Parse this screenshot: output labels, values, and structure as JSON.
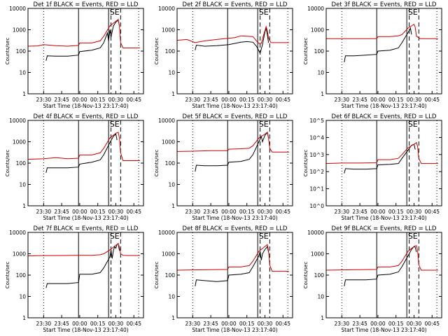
{
  "chart_data": [
    {
      "type": "line",
      "title": "Det 1f  BLACK = Events, RED = LLD",
      "ylabel": "Counts/sec",
      "xlabel": "Start Time (18-Nov-13 23:17:40)",
      "x_ticklabels": [
        "23:30",
        "23:45",
        "00:00",
        "00:15",
        "00:30",
        "00:45"
      ],
      "y_ticklabels": [
        "1",
        "10",
        "100",
        "1000",
        "10000"
      ],
      "ylim": [
        1,
        10000
      ],
      "y_scale": "log",
      "markers": [
        "S",
        "E"
      ],
      "series": [
        {
          "name": "Events",
          "color": "#000000",
          "x": [
            "23:32",
            "23:33",
            "23:40",
            "23:50",
            "23:59",
            "00:00",
            "00:10",
            "00:17",
            "00:20",
            "00:23",
            "00:24",
            "00:25",
            "00:26",
            "00:28",
            "00:30",
            "00:31",
            "00:32",
            "00:33"
          ],
          "y": [
            35,
            60,
            58,
            58,
            65,
            95,
            110,
            140,
            250,
            700,
            300,
            1000,
            450,
            1500,
            2300,
            2500,
            3000,
            1500
          ]
        },
        {
          "name": "LLD",
          "color": "#cc0000",
          "x": [
            "23:17",
            "23:25",
            "23:30",
            "23:40",
            "23:50",
            "23:59",
            "00:00",
            "00:10",
            "00:17",
            "00:20",
            "00:25",
            "00:30",
            "00:32",
            "00:33",
            "00:34",
            "00:36",
            "00:40",
            "00:50"
          ],
          "y": [
            170,
            175,
            200,
            180,
            170,
            185,
            240,
            240,
            300,
            500,
            1500,
            2500,
            3000,
            1500,
            250,
            140,
            140,
            140
          ]
        }
      ]
    },
    {
      "type": "line",
      "title": "Det 2f  BLACK = Events, RED = LLD",
      "ylabel": "Counts/sec",
      "xlabel": "Start Time (18-Nov-13 23:17:40)",
      "x_ticklabels": [
        "23:30",
        "23:45",
        "00:00",
        "00:15",
        "00:30",
        "00:45"
      ],
      "y_ticklabels": [
        "1",
        "10",
        "100",
        "1000",
        "10000"
      ],
      "ylim": [
        1,
        10000
      ],
      "y_scale": "log",
      "markers": [
        "S",
        "E"
      ],
      "series": [
        {
          "name": "Events",
          "color": "#000000",
          "x": [
            "23:32",
            "23:33",
            "23:40",
            "23:50",
            "00:00",
            "00:10",
            "00:15",
            "00:20",
            "00:23",
            "00:26",
            "00:28",
            "00:30",
            "00:31",
            "00:32",
            "00:33"
          ],
          "y": [
            110,
            190,
            170,
            180,
            200,
            260,
            280,
            260,
            170,
            80,
            200,
            800,
            1200,
            600,
            250
          ]
        },
        {
          "name": "LLD",
          "color": "#cc0000",
          "x": [
            "23:17",
            "23:25",
            "23:32",
            "23:40",
            "23:50",
            "00:00",
            "00:05",
            "00:10",
            "00:15",
            "00:20",
            "00:23",
            "00:25",
            "00:27",
            "00:29",
            "00:31",
            "00:32",
            "00:33",
            "00:35",
            "00:40",
            "00:50"
          ],
          "y": [
            320,
            350,
            250,
            300,
            350,
            400,
            430,
            520,
            500,
            480,
            300,
            230,
            230,
            600,
            1400,
            900,
            400,
            250,
            250,
            250
          ]
        }
      ]
    },
    {
      "type": "line",
      "title": "Det 3f  BLACK = Events, RED = LLD",
      "ylabel": "Counts/sec",
      "xlabel": "Start Time (18-Nov-13 23:17:40)",
      "x_ticklabels": [
        "23:30",
        "23:45",
        "00:00",
        "00:15",
        "00:30",
        "00:45"
      ],
      "y_ticklabels": [
        "1",
        "10",
        "100",
        "1000",
        "10000"
      ],
      "ylim": [
        1,
        10000
      ],
      "y_scale": "log",
      "markers": [
        "S",
        "E"
      ],
      "series": [
        {
          "name": "Events",
          "color": "#000000",
          "x": [
            "23:32",
            "23:33",
            "23:40",
            "23:50",
            "23:59",
            "00:00",
            "00:10",
            "00:17",
            "00:20",
            "00:24",
            "00:26",
            "00:27",
            "00:28"
          ],
          "y": [
            30,
            60,
            60,
            65,
            70,
            100,
            110,
            140,
            250,
            600,
            900,
            1200,
            600
          ]
        },
        {
          "name": "LLD",
          "color": "#cc0000",
          "x": [
            "23:17",
            "23:30",
            "23:45",
            "23:59",
            "00:00",
            "00:10",
            "00:17",
            "00:20",
            "00:25",
            "00:30",
            "00:31",
            "00:32",
            "00:35",
            "00:40",
            "00:50"
          ],
          "y": [
            380,
            380,
            380,
            380,
            480,
            480,
            520,
            600,
            1200,
            1800,
            1300,
            500,
            380,
            380,
            380
          ]
        }
      ]
    },
    {
      "type": "line",
      "title": "Det 4f  BLACK = Events, RED = LLD",
      "ylabel": "Counts/sec",
      "xlabel": "Start Time (18-Nov-13 23:17:40)",
      "x_ticklabels": [
        "23:30",
        "23:45",
        "00:00",
        "00:15",
        "00:30",
        "00:45"
      ],
      "y_ticklabels": [
        "1",
        "10",
        "100",
        "1000",
        "10000"
      ],
      "ylim": [
        1,
        10000
      ],
      "y_scale": "log",
      "markers": [
        "S",
        "E"
      ],
      "series": [
        {
          "name": "Events",
          "color": "#000000",
          "x": [
            "23:32",
            "23:33",
            "23:40",
            "23:50",
            "23:59",
            "00:00",
            "00:10",
            "00:17",
            "00:20",
            "00:25",
            "00:28",
            "00:30",
            "00:31"
          ],
          "y": [
            35,
            60,
            60,
            60,
            65,
            90,
            110,
            140,
            250,
            900,
            1800,
            2300,
            1200
          ]
        },
        {
          "name": "LLD",
          "color": "#cc0000",
          "x": [
            "23:17",
            "23:30",
            "23:40",
            "23:50",
            "23:59",
            "00:00",
            "00:10",
            "00:17",
            "00:20",
            "00:25",
            "00:30",
            "00:32",
            "00:33",
            "00:34",
            "00:36",
            "00:40",
            "00:50"
          ],
          "y": [
            150,
            160,
            180,
            160,
            170,
            240,
            240,
            300,
            500,
            1500,
            2500,
            2800,
            1500,
            300,
            130,
            130,
            130
          ]
        }
      ]
    },
    {
      "type": "line",
      "title": "Det 5f  BLACK = Events, RED = LLD",
      "ylabel": "Counts/sec",
      "xlabel": "Start Time (18-Nov-13 23:17:40)",
      "x_ticklabels": [
        "23:30",
        "23:45",
        "00:00",
        "00:15",
        "00:30",
        "00:45"
      ],
      "y_ticklabels": [
        "1",
        "10",
        "100",
        "1000",
        "10000"
      ],
      "ylim": [
        1,
        10000
      ],
      "y_scale": "log",
      "markers": [
        "S",
        "E"
      ],
      "series": [
        {
          "name": "Events",
          "color": "#000000",
          "x": [
            "23:32",
            "23:33",
            "23:40",
            "23:50",
            "23:59",
            "00:00",
            "00:10",
            "00:17",
            "00:20",
            "00:25",
            "00:27",
            "00:28",
            "00:30",
            "00:31",
            "00:32",
            "00:33"
          ],
          "y": [
            40,
            80,
            75,
            75,
            80,
            110,
            120,
            150,
            250,
            1000,
            1800,
            1000,
            2000,
            2300,
            2800,
            1500
          ]
        },
        {
          "name": "LLD",
          "color": "#cc0000",
          "x": [
            "23:17",
            "23:30",
            "23:45",
            "23:59",
            "00:00",
            "00:10",
            "00:17",
            "00:20",
            "00:25",
            "00:30",
            "00:32",
            "00:33",
            "00:34",
            "00:36",
            "00:40",
            "00:50"
          ],
          "y": [
            350,
            360,
            380,
            380,
            450,
            470,
            500,
            650,
            1500,
            2300,
            2800,
            1500,
            500,
            330,
            330,
            330
          ]
        }
      ]
    },
    {
      "type": "line",
      "title": "Det 6f  BLACK = Events, RED = LLD",
      "ylabel": "Counts/sec",
      "xlabel": "Start Time (18-Nov-13 23:17:40)",
      "x_ticklabels": [
        "23:30",
        "23:45",
        "00:00",
        "00:15",
        "00:30",
        "00:45"
      ],
      "y_ticklabels": [
        "10^0",
        "10^1",
        "10^2",
        "10^3",
        "10^4",
        "10^5"
      ],
      "ylim": [
        1,
        100000
      ],
      "y_scale": "log",
      "markers": [
        "S",
        "E"
      ],
      "series": [
        {
          "name": "Events",
          "color": "#000000",
          "x": [
            "23:32",
            "23:33",
            "23:40",
            "23:50",
            "23:59",
            "00:00",
            "00:10",
            "00:17",
            "00:20",
            "00:25",
            "00:28",
            "00:30",
            "00:31"
          ],
          "y": [
            80,
            150,
            140,
            140,
            150,
            250,
            270,
            300,
            600,
            1800,
            3500,
            4000,
            2000
          ]
        },
        {
          "name": "LLD",
          "color": "#cc0000",
          "x": [
            "23:17",
            "23:30",
            "23:45",
            "23:59",
            "00:00",
            "00:10",
            "00:17",
            "00:20",
            "00:25",
            "00:30",
            "00:32",
            "00:33",
            "00:34",
            "00:36",
            "00:40",
            "00:50"
          ],
          "y": [
            300,
            320,
            320,
            330,
            500,
            500,
            600,
            1000,
            2500,
            4000,
            5000,
            3000,
            600,
            300,
            300,
            300
          ]
        }
      ]
    },
    {
      "type": "line",
      "title": "Det 7f  BLACK = Events, RED = LLD",
      "ylabel": "Counts/sec",
      "xlabel": "Start Time (18-Nov-13 23:17:40)",
      "x_ticklabels": [
        "23:30",
        "23:45",
        "00:00",
        "00:15",
        "00:30",
        "00:45"
      ],
      "y_ticklabels": [
        "1",
        "10",
        "100",
        "1000",
        "10000"
      ],
      "ylim": [
        1,
        10000
      ],
      "y_scale": "log",
      "markers": [
        "S",
        "E"
      ],
      "series": [
        {
          "name": "Events",
          "color": "#000000",
          "x": [
            "23:32",
            "23:33",
            "23:40",
            "23:50",
            "23:59",
            "00:00",
            "00:10",
            "00:17",
            "00:20",
            "00:25",
            "00:26",
            "00:27",
            "00:28",
            "00:29",
            "00:30",
            "00:31",
            "00:32",
            "00:33"
          ],
          "y": [
            25,
            40,
            40,
            40,
            45,
            110,
            110,
            130,
            220,
            700,
            1500,
            600,
            1400,
            2200,
            1800,
            2700,
            3000,
            1400
          ]
        },
        {
          "name": "LLD",
          "color": "#cc0000",
          "x": [
            "23:17",
            "23:30",
            "23:45",
            "23:59",
            "00:10",
            "00:17",
            "00:20",
            "00:25",
            "00:30",
            "00:32",
            "00:33",
            "00:34",
            "00:36",
            "00:40",
            "00:50"
          ],
          "y": [
            800,
            820,
            830,
            850,
            850,
            900,
            1000,
            1500,
            2500,
            3000,
            2000,
            1000,
            850,
            830,
            830
          ]
        }
      ]
    },
    {
      "type": "line",
      "title": "Det 8f  BLACK = Events, RED = LLD",
      "ylabel": "Counts/sec",
      "xlabel": "Start Time (18-Nov-13 23:17:40)",
      "x_ticklabels": [
        "23:30",
        "23:45",
        "00:00",
        "00:15",
        "00:30",
        "00:45"
      ],
      "y_ticklabels": [
        "1",
        "10",
        "100",
        "1000",
        "10000"
      ],
      "ylim": [
        1,
        10000
      ],
      "y_scale": "log",
      "markers": [
        "S",
        "E"
      ],
      "series": [
        {
          "name": "Events",
          "color": "#000000",
          "x": [
            "23:32",
            "23:33",
            "23:40",
            "23:50",
            "23:59",
            "00:00",
            "00:10",
            "00:17",
            "00:20",
            "00:25",
            "00:26",
            "00:27",
            "00:28",
            "00:30",
            "00:31",
            "00:32",
            "00:33"
          ],
          "y": [
            30,
            60,
            55,
            50,
            55,
            100,
            110,
            130,
            250,
            800,
            1300,
            500,
            1000,
            1600,
            1800,
            2200,
            1200
          ]
        },
        {
          "name": "LLD",
          "color": "#cc0000",
          "x": [
            "23:17",
            "23:30",
            "23:45",
            "23:59",
            "00:00",
            "00:10",
            "00:17",
            "00:20",
            "00:25",
            "00:30",
            "00:32",
            "00:33",
            "00:34",
            "00:36",
            "00:40",
            "00:50"
          ],
          "y": [
            170,
            175,
            180,
            185,
            240,
            240,
            280,
            450,
            1300,
            2200,
            2700,
            1400,
            300,
            150,
            150,
            150
          ]
        }
      ]
    },
    {
      "type": "line",
      "title": "Det 9f  BLACK = Events, RED = LLD",
      "ylabel": "Counts/sec",
      "xlabel": "Start Time (18-Nov-13 23:17:40)",
      "x_ticklabels": [
        "23:30",
        "23:45",
        "00:00",
        "00:15",
        "00:30",
        "00:45"
      ],
      "y_ticklabels": [
        "1",
        "10",
        "100",
        "1000",
        "10000"
      ],
      "ylim": [
        1,
        10000
      ],
      "y_scale": "log",
      "markers": [
        "S",
        "E"
      ],
      "series": [
        {
          "name": "Events",
          "color": "#000000",
          "x": [
            "23:32",
            "23:33",
            "23:40",
            "23:50",
            "23:59",
            "00:00",
            "00:10",
            "00:17",
            "00:20",
            "00:25",
            "00:28",
            "00:30",
            "00:31",
            "00:32"
          ],
          "y": [
            30,
            60,
            60,
            60,
            65,
            100,
            110,
            140,
            250,
            800,
            1600,
            2200,
            2000,
            1200
          ]
        },
        {
          "name": "LLD",
          "color": "#cc0000",
          "x": [
            "23:17",
            "23:30",
            "23:45",
            "23:59",
            "00:00",
            "00:10",
            "00:17",
            "00:20",
            "00:25",
            "00:30",
            "00:32",
            "00:33",
            "00:34",
            "00:36",
            "00:40",
            "00:50"
          ],
          "y": [
            170,
            175,
            180,
            185,
            240,
            240,
            280,
            450,
            1300,
            2200,
            2400,
            1400,
            300,
            170,
            170,
            170
          ]
        }
      ]
    }
  ]
}
